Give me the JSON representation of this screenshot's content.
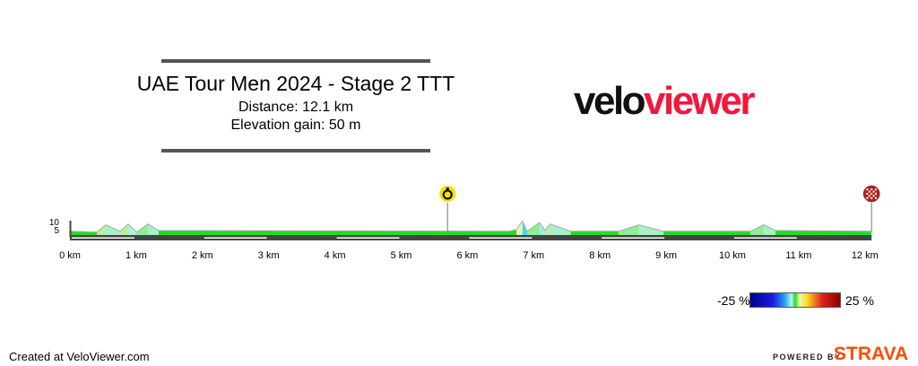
{
  "header": {
    "title": "UAE Tour Men 2024 - Stage 2 TTT",
    "distance": "Distance: 12.1 km",
    "elevation_gain": "Elevation gain: 50 m"
  },
  "logo": {
    "part1": "velo",
    "part2": "viewer"
  },
  "legend": {
    "min_label": "-25 %",
    "max_label": "25 %"
  },
  "footer": {
    "credit": "Created at VeloViewer.com",
    "powered_by": "POWERED BY",
    "strava": "STRAVA"
  },
  "colors": {
    "flat": "#22dd22",
    "brand_red": "#f2173b",
    "strava_orange": "#fc4c02",
    "finish_marker": "#b22222",
    "start_marker": "#f5e000"
  },
  "chart_data": {
    "type": "area",
    "xlabel": "",
    "ylabel": "",
    "x_ticks": [
      "0 km",
      "1 km",
      "2 km",
      "3 km",
      "4 km",
      "5 km",
      "6 km",
      "7 km",
      "8 km",
      "9 km",
      "10 km",
      "11 km",
      "12 km"
    ],
    "y_ticks": [
      "5",
      "10"
    ],
    "xlim": [
      0,
      12.1
    ],
    "ylim": [
      0,
      10
    ],
    "markers": [
      {
        "type": "start-stopwatch",
        "km": 5.7
      },
      {
        "type": "finish-flag",
        "km": 12.1
      }
    ],
    "profile": [
      [
        0,
        4
      ],
      [
        0.41,
        3.5
      ],
      [
        0.54,
        8
      ],
      [
        0.76,
        4
      ],
      [
        0.88,
        8.5
      ],
      [
        1.01,
        3.5
      ],
      [
        1.18,
        8.5
      ],
      [
        1.34,
        4.5
      ],
      [
        6.63,
        4
      ],
      [
        6.74,
        5
      ],
      [
        6.83,
        10.5
      ],
      [
        6.9,
        4
      ],
      [
        7.09,
        9.5
      ],
      [
        7.17,
        4.5
      ],
      [
        7.25,
        8.5
      ],
      [
        7.56,
        4
      ],
      [
        8.28,
        4
      ],
      [
        8.59,
        8
      ],
      [
        8.96,
        4
      ],
      [
        10.27,
        4
      ],
      [
        10.47,
        8
      ],
      [
        10.65,
        4.5
      ],
      [
        12.1,
        4
      ]
    ]
  }
}
